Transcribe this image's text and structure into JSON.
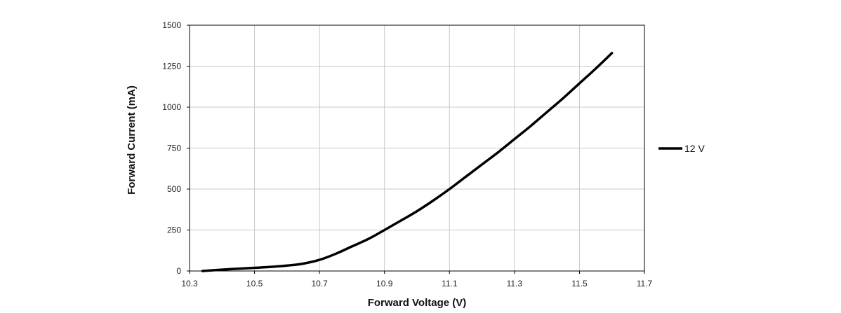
{
  "chart_data": {
    "type": "line",
    "xlabel": "Forward Voltage (V)",
    "ylabel": "Forward Current (mA)",
    "xlim": [
      10.3,
      11.7
    ],
    "ylim": [
      0,
      1500
    ],
    "x_ticks": [
      "10.3",
      "10.5",
      "10.7",
      "10.9",
      "11.1",
      "11.3",
      "11.5",
      "11.7"
    ],
    "y_ticks": [
      "0",
      "250",
      "500",
      "750",
      "1000",
      "1250",
      "1500"
    ],
    "grid": true,
    "legend_position": "right",
    "series": [
      {
        "name": "12 V",
        "color": "#000000",
        "x": [
          10.34,
          10.4,
          10.45,
          10.5,
          10.55,
          10.6,
          10.65,
          10.7,
          10.75,
          10.8,
          10.85,
          10.9,
          10.95,
          11.0,
          11.05,
          11.1,
          11.15,
          11.2,
          11.25,
          11.3,
          11.35,
          11.4,
          11.45,
          11.5,
          11.55,
          11.6
        ],
        "y": [
          0,
          8,
          14,
          19,
          25,
          33,
          45,
          68,
          105,
          150,
          195,
          250,
          307,
          365,
          430,
          500,
          575,
          650,
          725,
          805,
          885,
          970,
          1055,
          1145,
          1235,
          1330
        ]
      }
    ]
  }
}
